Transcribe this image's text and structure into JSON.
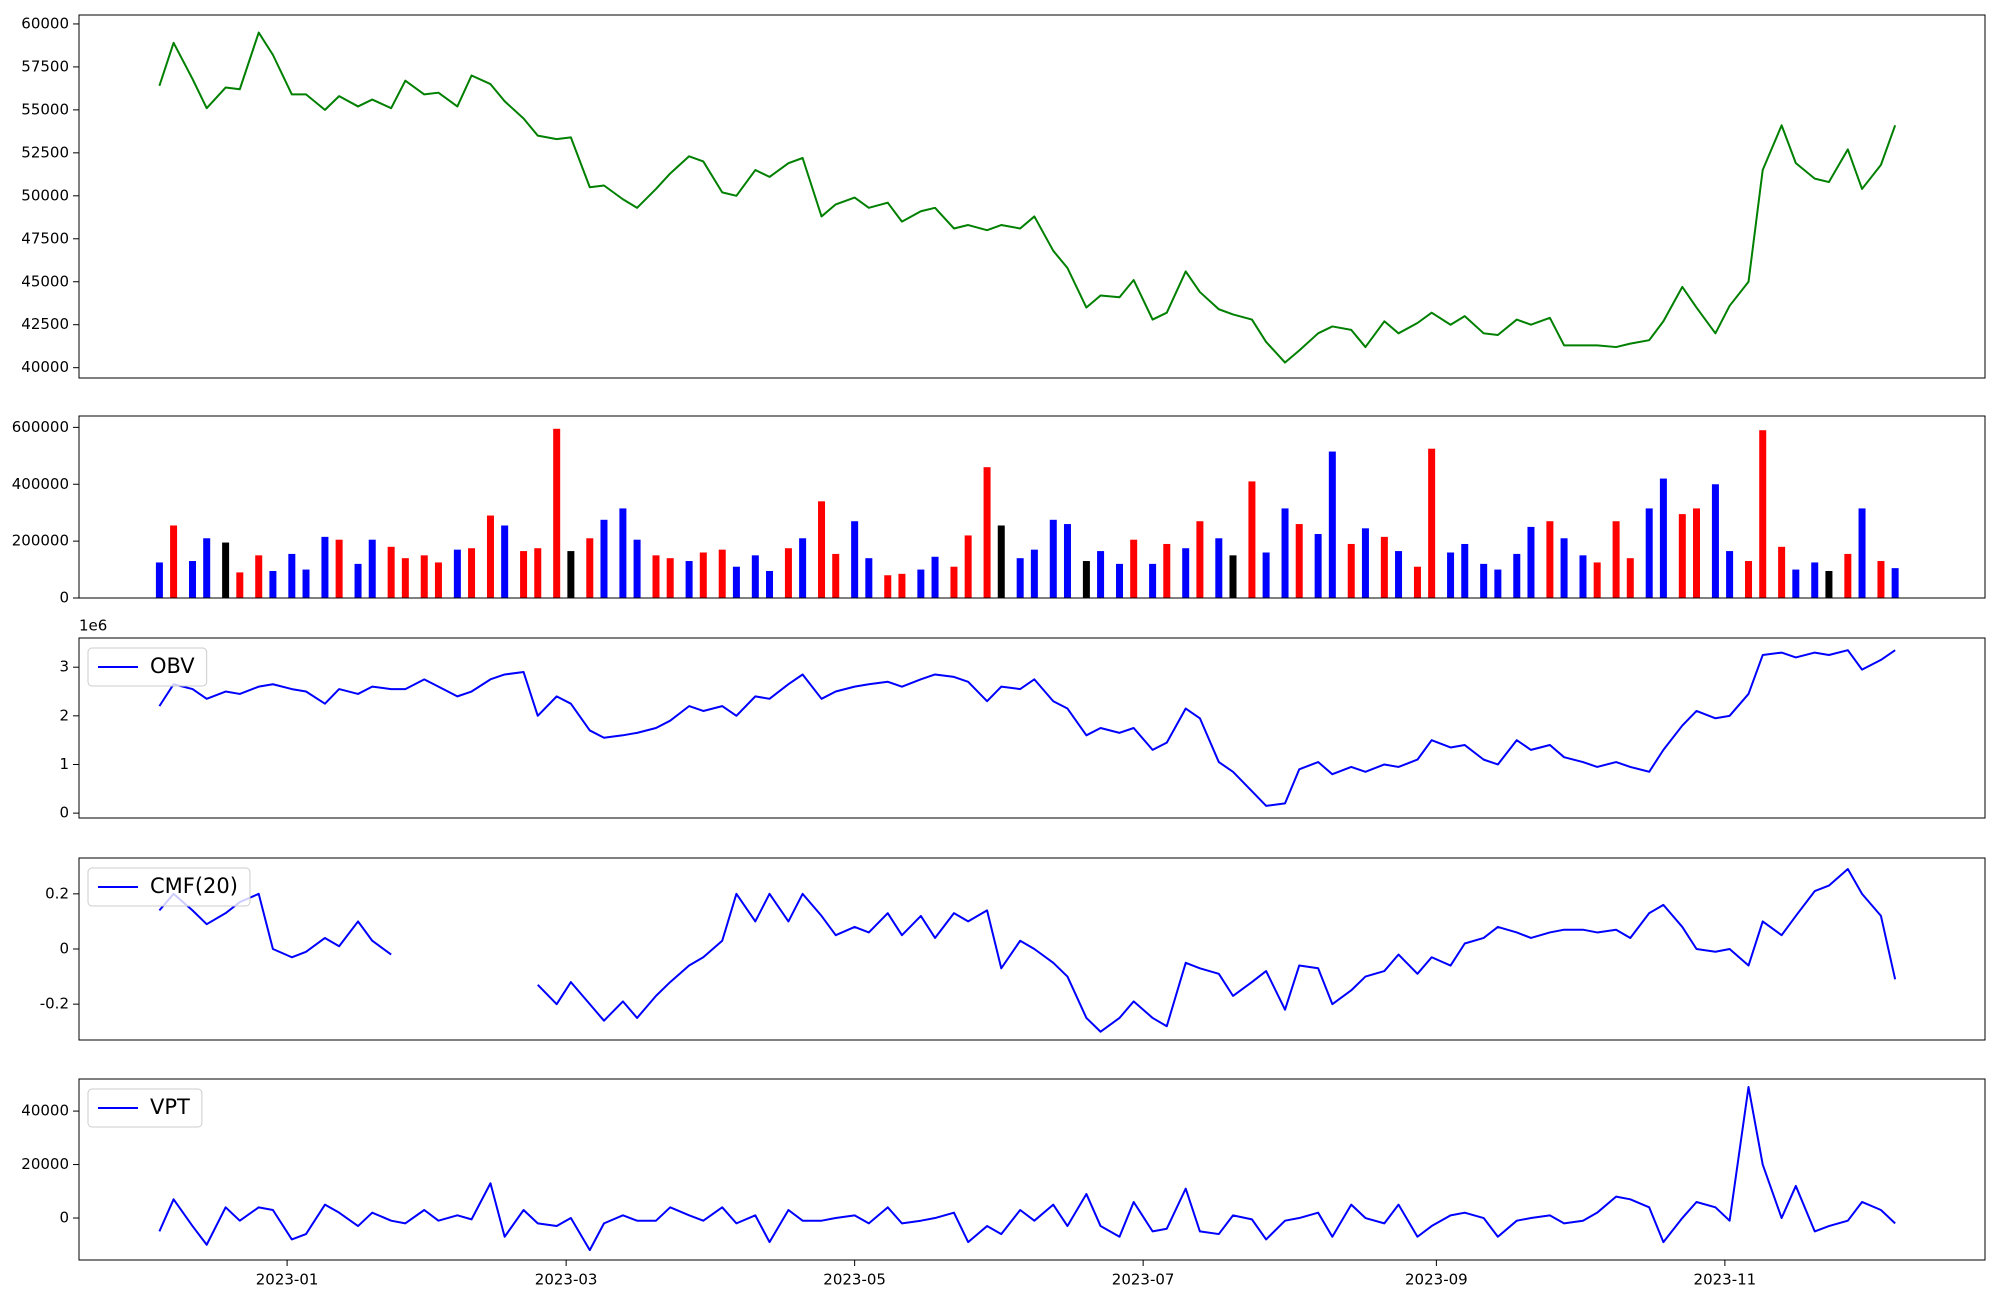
{
  "chart_data": {
    "type": "multi-panel",
    "x": [
      "2022-12-05",
      "2022-12-08",
      "2022-12-12",
      "2022-12-15",
      "2022-12-19",
      "2022-12-22",
      "2022-12-26",
      "2022-12-29",
      "2023-01-02",
      "2023-01-05",
      "2023-01-09",
      "2023-01-12",
      "2023-01-16",
      "2023-01-19",
      "2023-01-23",
      "2023-01-26",
      "2023-01-30",
      "2023-02-02",
      "2023-02-06",
      "2023-02-09",
      "2023-02-13",
      "2023-02-16",
      "2023-02-20",
      "2023-02-23",
      "2023-02-27",
      "2023-03-02",
      "2023-03-06",
      "2023-03-09",
      "2023-03-13",
      "2023-03-16",
      "2023-03-20",
      "2023-03-23",
      "2023-03-27",
      "2023-03-30",
      "2023-04-03",
      "2023-04-06",
      "2023-04-10",
      "2023-04-13",
      "2023-04-17",
      "2023-04-20",
      "2023-04-24",
      "2023-04-27",
      "2023-05-01",
      "2023-05-04",
      "2023-05-08",
      "2023-05-11",
      "2023-05-15",
      "2023-05-18",
      "2023-05-22",
      "2023-05-25",
      "2023-05-29",
      "2023-06-01",
      "2023-06-05",
      "2023-06-08",
      "2023-06-12",
      "2023-06-15",
      "2023-06-19",
      "2023-06-22",
      "2023-06-26",
      "2023-06-29",
      "2023-07-03",
      "2023-07-06",
      "2023-07-10",
      "2023-07-13",
      "2023-07-17",
      "2023-07-20",
      "2023-07-24",
      "2023-07-27",
      "2023-07-31",
      "2023-08-03",
      "2023-08-07",
      "2023-08-10",
      "2023-08-14",
      "2023-08-17",
      "2023-08-21",
      "2023-08-24",
      "2023-08-28",
      "2023-08-31",
      "2023-09-04",
      "2023-09-07",
      "2023-09-11",
      "2023-09-14",
      "2023-09-18",
      "2023-09-21",
      "2023-09-25",
      "2023-09-28",
      "2023-10-02",
      "2023-10-05",
      "2023-10-09",
      "2023-10-12",
      "2023-10-16",
      "2023-10-19",
      "2023-10-23",
      "2023-10-26",
      "2023-10-30",
      "2023-11-02",
      "2023-11-06",
      "2023-11-09",
      "2023-11-13",
      "2023-11-16",
      "2023-11-20",
      "2023-11-23",
      "2023-11-27",
      "2023-11-30",
      "2023-12-04",
      "2023-12-07"
    ],
    "xlim": [
      "2022-11-18",
      "2023-12-26"
    ],
    "xticks": [
      {
        "value": "2023-01-01",
        "label": "2023-01"
      },
      {
        "value": "2023-03-01",
        "label": "2023-03"
      },
      {
        "value": "2023-05-01",
        "label": "2023-05"
      },
      {
        "value": "2023-07-01",
        "label": "2023-07"
      },
      {
        "value": "2023-09-01",
        "label": "2023-09"
      },
      {
        "value": "2023-11-01",
        "label": "2023-11"
      }
    ],
    "panels": [
      {
        "type": "line",
        "color": "green",
        "values": [
          56400,
          58900,
          56800,
          55100,
          56300,
          56200,
          59500,
          58200,
          55900,
          55900,
          55000,
          55800,
          55200,
          55600,
          55100,
          56700,
          55900,
          56000,
          55200,
          57000,
          56500,
          55500,
          54500,
          53500,
          53300,
          53400,
          50500,
          50600,
          49800,
          49300,
          50400,
          51300,
          52300,
          52000,
          50200,
          50000,
          51500,
          51100,
          51900,
          52200,
          48800,
          49500,
          49900,
          49300,
          49600,
          48500,
          49100,
          49300,
          48100,
          48300,
          48000,
          48300,
          48100,
          48800,
          46800,
          45800,
          43500,
          44200,
          44100,
          45100,
          42800,
          43200,
          45600,
          44400,
          43400,
          43100,
          42800,
          41500,
          40300,
          41000,
          42000,
          42400,
          42200,
          41200,
          42700,
          42000,
          42600,
          43200,
          42500,
          43000,
          42000,
          41900,
          42800,
          42500,
          42900,
          41300,
          41300,
          41300,
          41200,
          41400,
          41600,
          42700,
          44700,
          43500,
          42000,
          43600,
          45000,
          51500,
          54100,
          51900,
          51000,
          50800,
          52700,
          50400,
          51800,
          54100
        ],
        "ylim": [
          39400,
          60520
        ],
        "yticks": [
          40000,
          42500,
          45000,
          47500,
          50000,
          52500,
          55000,
          57500,
          60000
        ]
      },
      {
        "type": "bar",
        "values": [
          125000,
          255000,
          130000,
          210000,
          195000,
          90000,
          150000,
          95000,
          155000,
          100000,
          215000,
          205000,
          120000,
          205000,
          180000,
          140000,
          150000,
          125000,
          170000,
          175000,
          290000,
          255000,
          165000,
          175000,
          595000,
          165000,
          210000,
          275000,
          315000,
          205000,
          150000,
          140000,
          130000,
          160000,
          170000,
          110000,
          150000,
          95000,
          175000,
          210000,
          340000,
          155000,
          270000,
          140000,
          80000,
          85000,
          100000,
          145000,
          110000,
          220000,
          460000,
          255000,
          140000,
          170000,
          275000,
          260000,
          130000,
          165000,
          120000,
          205000,
          120000,
          190000,
          175000,
          270000,
          210000,
          150000,
          410000,
          160000,
          315000,
          260000,
          225000,
          515000,
          190000,
          245000,
          215000,
          165000,
          110000,
          525000,
          160000,
          190000,
          120000,
          100000,
          155000,
          250000,
          270000,
          210000,
          150000,
          125000,
          270000,
          140000,
          315000,
          420000,
          295000,
          315000,
          400000,
          165000,
          130000,
          590000,
          180000,
          100000,
          125000,
          95000,
          155000,
          315000,
          130000,
          105000
        ],
        "colors": [
          "blue",
          "red",
          "blue",
          "blue",
          "black",
          "red",
          "red",
          "blue",
          "blue",
          "blue",
          "blue",
          "red",
          "blue",
          "blue",
          "red",
          "red",
          "red",
          "red",
          "blue",
          "red",
          "red",
          "blue",
          "red",
          "red",
          "red",
          "black",
          "red",
          "blue",
          "blue",
          "blue",
          "red",
          "red",
          "blue",
          "red",
          "red",
          "blue",
          "blue",
          "blue",
          "red",
          "blue",
          "red",
          "red",
          "blue",
          "blue",
          "red",
          "red",
          "blue",
          "blue",
          "red",
          "red",
          "red",
          "black",
          "blue",
          "blue",
          "blue",
          "blue",
          "black",
          "blue",
          "blue",
          "red",
          "blue",
          "red",
          "blue",
          "red",
          "blue",
          "black",
          "red",
          "blue",
          "blue",
          "red",
          "blue",
          "blue",
          "red",
          "blue",
          "red",
          "blue",
          "red",
          "red",
          "blue",
          "blue",
          "blue",
          "blue",
          "blue",
          "blue",
          "red",
          "blue",
          "blue",
          "red",
          "red",
          "red",
          "blue",
          "blue",
          "red",
          "red",
          "blue",
          "blue",
          "red",
          "red",
          "red",
          "blue",
          "blue",
          "black",
          "red",
          "blue",
          "red",
          "blue"
        ],
        "ylim": [
          0,
          640000
        ],
        "yticks": [
          0,
          200000,
          400000,
          600000
        ]
      },
      {
        "type": "line",
        "y_offset_label": "1e6",
        "legend": "upper left",
        "series": [
          {
            "name": "OBV",
            "color": "blue",
            "values": [
              2.2,
              2.65,
              2.55,
              2.35,
              2.5,
              2.45,
              2.6,
              2.65,
              2.55,
              2.5,
              2.25,
              2.55,
              2.45,
              2.6,
              2.55,
              2.55,
              2.75,
              2.6,
              2.4,
              2.5,
              2.75,
              2.85,
              2.9,
              2.0,
              2.4,
              2.25,
              1.7,
              1.55,
              1.6,
              1.65,
              1.75,
              1.9,
              2.2,
              2.1,
              2.2,
              2.0,
              2.4,
              2.35,
              2.65,
              2.85,
              2.35,
              2.5,
              2.6,
              2.65,
              2.7,
              2.6,
              2.75,
              2.85,
              2.8,
              2.7,
              2.3,
              2.6,
              2.55,
              2.75,
              2.3,
              2.15,
              1.6,
              1.75,
              1.65,
              1.75,
              1.3,
              1.45,
              2.15,
              1.95,
              1.05,
              0.85,
              0.45,
              0.15,
              0.2,
              0.9,
              1.05,
              0.8,
              0.95,
              0.85,
              1.0,
              0.95,
              1.1,
              1.5,
              1.35,
              1.4,
              1.1,
              1.0,
              1.5,
              1.3,
              1.4,
              1.15,
              1.05,
              0.95,
              1.05,
              0.95,
              0.85,
              1.3,
              1.8,
              2.1,
              1.95,
              2.0,
              2.45,
              3.25,
              3.3,
              3.2,
              3.3,
              3.25,
              3.35,
              2.95,
              3.15,
              3.35
            ]
          }
        ],
        "ylim": [
          -0.1,
          3.6
        ],
        "yticks": [
          0,
          1,
          2,
          3
        ]
      },
      {
        "type": "line",
        "legend": "upper left",
        "series": [
          {
            "name": "CMF(20)",
            "color": "blue",
            "values": [
              0.14,
              0.2,
              0.14,
              0.09,
              0.13,
              0.17,
              0.2,
              0,
              -0.03,
              -0.01,
              0.04,
              0.01,
              0.1,
              0.03,
              -0.02,
              null,
              null,
              null,
              null,
              null,
              null,
              null,
              null,
              -0.13,
              -0.2,
              -0.12,
              -0.2,
              -0.26,
              -0.19,
              -0.25,
              -0.17,
              -0.12,
              -0.06,
              -0.03,
              0.03,
              0.2,
              0.1,
              0.2,
              0.1,
              0.2,
              0.12,
              0.05,
              0.08,
              0.06,
              0.13,
              0.05,
              0.12,
              0.04,
              0.13,
              0.1,
              0.14,
              -0.07,
              0.03,
              0,
              -0.05,
              -0.1,
              -0.25,
              -0.3,
              -0.25,
              -0.19,
              -0.25,
              -0.28,
              -0.05,
              -0.07,
              -0.09,
              -0.17,
              -0.12,
              -0.08,
              -0.22,
              -0.06,
              -0.07,
              -0.2,
              -0.15,
              -0.1,
              -0.08,
              -0.02,
              -0.09,
              -0.03,
              -0.06,
              0.02,
              0.04,
              0.08,
              0.06,
              0.04,
              0.06,
              0.07,
              0.07,
              0.06,
              0.07,
              0.04,
              0.13,
              0.16,
              0.08,
              0,
              -0.01,
              0,
              -0.06,
              0.1,
              0.05,
              0.12,
              0.21,
              0.23,
              0.29,
              0.2,
              0.12,
              -0.11
            ]
          }
        ],
        "ylim": [
          -0.33,
          0.33
        ],
        "yticks": [
          -0.2,
          0.0,
          0.2
        ]
      },
      {
        "type": "line",
        "legend": "upper left",
        "series": [
          {
            "name": "VPT",
            "color": "blue",
            "values": [
              -5000,
              7000,
              -3000,
              -10000,
              4000,
              -1000,
              4000,
              3000,
              -8000,
              -6000,
              5000,
              2000,
              -3000,
              2000,
              -1000,
              -2000,
              3000,
              -1000,
              1000,
              -500,
              13000,
              -7000,
              3000,
              -2000,
              -3000,
              0,
              -12000,
              -2000,
              1000,
              -1000,
              -1000,
              4000,
              1000,
              -1000,
              4000,
              -2000,
              1000,
              -9000,
              3000,
              -1000,
              -1000,
              0,
              1000,
              -2000,
              4000,
              -2000,
              -1000,
              0,
              2000,
              -9000,
              -3000,
              -6000,
              3000,
              -1000,
              5000,
              -3000,
              9000,
              -3000,
              -7000,
              6000,
              -5000,
              -4000,
              11000,
              -5000,
              -6000,
              1000,
              -500,
              -8000,
              -1000,
              0,
              2000,
              -7000,
              5000,
              0,
              -2000,
              5000,
              -7000,
              -3000,
              1000,
              2000,
              0,
              -7000,
              -1000,
              0,
              1000,
              -2000,
              -1000,
              2000,
              8000,
              7000,
              4000,
              -9000,
              0,
              6000,
              4000,
              -1000,
              49000,
              20000,
              0,
              12000,
              -5000,
              -3000,
              -1000,
              6000,
              3000,
              -2000
            ]
          }
        ],
        "ylim": [
          -15700,
          52000
        ],
        "yticks": [
          0,
          20000,
          40000
        ]
      }
    ]
  }
}
